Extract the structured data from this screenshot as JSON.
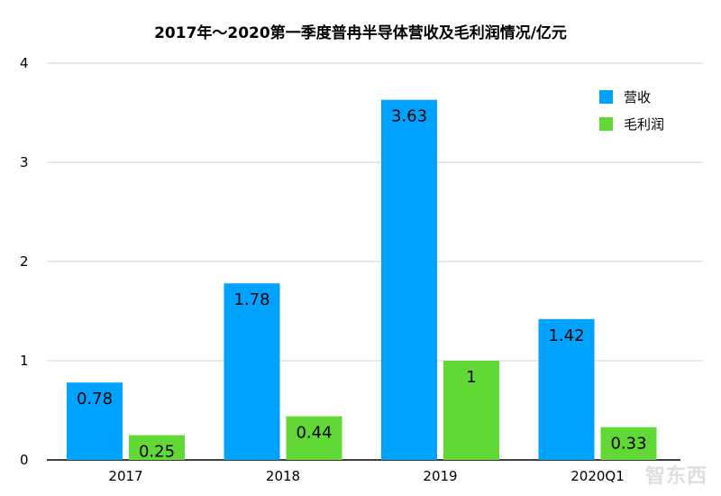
{
  "chart_data": {
    "type": "bar",
    "title": "2017年～2020第一季度普冉半导体营收及毛利润情况/亿元",
    "categories": [
      "2017",
      "2018",
      "2019",
      "2020Q1"
    ],
    "series": [
      {
        "name": "营收",
        "values": [
          0.78,
          1.78,
          3.63,
          1.42
        ],
        "labels": [
          "0.78",
          "1.78",
          "3.63",
          "1.42"
        ],
        "color": "#00A2FF"
      },
      {
        "name": "毛利润",
        "values": [
          0.25,
          0.44,
          1,
          0.33
        ],
        "labels": [
          "0.25",
          "0.44",
          "1",
          "0.33"
        ],
        "color": "#61D836"
      }
    ],
    "yticks": [
      "0",
      "1",
      "2",
      "3",
      "4"
    ],
    "ylim": [
      0,
      4
    ],
    "grid": true,
    "legend": "top-right",
    "xlabel": "",
    "ylabel": ""
  },
  "watermark": "智东西"
}
